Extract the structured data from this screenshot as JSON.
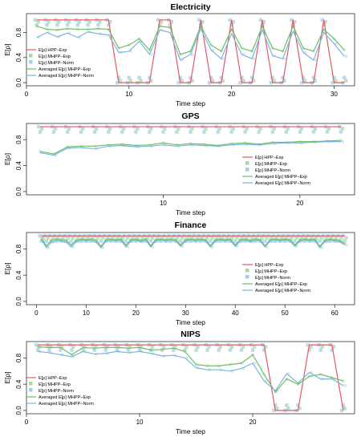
{
  "legend_labels": [
    "E[ρ] HPP−Exp",
    "E[ρ] MHPP−Exp",
    "E[ρ] MHPP−Norm",
    "Averaged E[ρ] MHPP−Exp",
    "Averaged E[ρ] MHPP−Norm"
  ],
  "colors": {
    "hpp_exp": "#e05a6a",
    "mhpp_exp_points": "#a9d8a0",
    "mhpp_norm_points": "#a6cde6",
    "avg_mhpp_exp": "#6fbe6a",
    "avg_mhpp_norm": "#7db4dc",
    "axis": "#333333"
  },
  "chart_data": [
    {
      "type": "line",
      "title": "Electricity",
      "xlabel": "Time step",
      "ylabel": "E[ρ]",
      "xlim": [
        0,
        32
      ],
      "ylim": [
        -0.05,
        1.1
      ],
      "xticks": [
        0,
        10,
        20,
        30
      ],
      "yticks": [
        0.0,
        0.4,
        0.8
      ],
      "legend_position": "left",
      "x": [
        1,
        2,
        3,
        4,
        5,
        6,
        7,
        8,
        9,
        10,
        11,
        12,
        13,
        14,
        15,
        16,
        17,
        18,
        19,
        20,
        21,
        22,
        23,
        24,
        25,
        26,
        27,
        28,
        29,
        30,
        31
      ],
      "series": [
        {
          "name": "E[ρ] HPP−Exp",
          "values": [
            1,
            1,
            1,
            1,
            1,
            1,
            1,
            1,
            0,
            0,
            0,
            0,
            1,
            1,
            0,
            0,
            1,
            0,
            0,
            1,
            0,
            0,
            1,
            0,
            0,
            1,
            0,
            0,
            1,
            0,
            0
          ]
        },
        {
          "name": "Averaged E[ρ] MHPP−Exp",
          "values": [
            0.9,
            0.85,
            0.84,
            0.86,
            0.85,
            0.85,
            0.86,
            0.85,
            0.55,
            0.6,
            0.7,
            0.52,
            0.9,
            0.88,
            0.45,
            0.5,
            0.9,
            0.6,
            0.5,
            0.85,
            0.55,
            0.5,
            0.9,
            0.55,
            0.5,
            0.9,
            0.55,
            0.5,
            0.85,
            0.7,
            0.52
          ]
        },
        {
          "name": "Averaged E[ρ] MHPP−Norm",
          "values": [
            0.72,
            0.8,
            0.73,
            0.79,
            0.72,
            0.81,
            0.78,
            0.76,
            0.48,
            0.5,
            0.66,
            0.45,
            0.84,
            0.8,
            0.36,
            0.45,
            0.86,
            0.52,
            0.38,
            0.78,
            0.45,
            0.38,
            0.84,
            0.43,
            0.38,
            0.82,
            0.48,
            0.36,
            0.8,
            0.62,
            0.42
          ]
        }
      ]
    },
    {
      "type": "line",
      "title": "GPS",
      "xlabel": "Time step",
      "ylabel": "E[ρ]",
      "xlim": [
        0,
        24
      ],
      "ylim": [
        -0.05,
        1.05
      ],
      "xticks": [
        10,
        20
      ],
      "yticks": [
        0.0,
        0.4,
        0.8
      ],
      "legend_position": "right",
      "x": [
        1,
        2,
        3,
        4,
        5,
        6,
        7,
        8,
        9,
        10,
        11,
        12,
        13,
        14,
        15,
        16,
        17,
        18,
        19,
        20,
        21,
        22,
        23
      ],
      "series": [
        {
          "name": "E[ρ] HPP−Exp",
          "values": [
            1,
            1,
            1,
            1,
            1,
            1,
            1,
            1,
            1,
            1,
            1,
            1,
            1,
            1,
            1,
            1,
            1,
            1,
            1,
            1,
            1,
            1,
            1
          ]
        },
        {
          "name": "Averaged E[ρ] MHPP−Exp",
          "values": [
            0.62,
            0.58,
            0.69,
            0.7,
            0.7,
            0.72,
            0.73,
            0.71,
            0.72,
            0.75,
            0.72,
            0.74,
            0.73,
            0.71,
            0.74,
            0.75,
            0.73,
            0.76,
            0.76,
            0.77,
            0.77,
            0.78,
            0.79
          ]
        },
        {
          "name": "Averaged E[ρ] MHPP−Norm",
          "values": [
            0.6,
            0.56,
            0.67,
            0.68,
            0.66,
            0.7,
            0.71,
            0.69,
            0.7,
            0.72,
            0.7,
            0.72,
            0.71,
            0.7,
            0.72,
            0.73,
            0.72,
            0.74,
            0.75,
            0.75,
            0.76,
            0.77,
            0.77
          ]
        }
      ]
    },
    {
      "type": "line",
      "title": "Finance",
      "xlabel": "Time step",
      "ylabel": "E[ρ]",
      "xlim": [
        -2,
        64
      ],
      "ylim": [
        -0.05,
        1.05
      ],
      "xticks": [
        0,
        10,
        20,
        30,
        40,
        50,
        60
      ],
      "yticks": [
        0.0,
        0.4,
        0.8
      ],
      "legend_position": "right",
      "x": [
        1,
        2,
        3,
        4,
        5,
        6,
        7,
        8,
        9,
        10,
        11,
        12,
        13,
        14,
        15,
        16,
        17,
        18,
        19,
        20,
        21,
        22,
        23,
        24,
        25,
        26,
        27,
        28,
        29,
        30,
        31,
        32,
        33,
        34,
        35,
        36,
        37,
        38,
        39,
        40,
        41,
        42,
        43,
        44,
        45,
        46,
        47,
        48,
        49,
        50,
        51,
        52,
        53,
        54,
        55,
        56,
        57,
        58,
        59,
        60,
        61,
        62
      ],
      "series": [
        {
          "name": "E[ρ] HPP−Exp",
          "values": [
            1,
            1,
            1,
            1,
            1,
            1,
            1,
            1,
            1,
            1,
            1,
            1,
            1,
            1,
            1,
            1,
            1,
            1,
            1,
            1,
            1,
            1,
            1,
            1,
            1,
            1,
            1,
            1,
            1,
            1,
            1,
            1,
            1,
            1,
            1,
            1,
            1,
            1,
            1,
            1,
            1,
            1,
            1,
            1,
            1,
            1,
            1,
            1,
            1,
            1,
            1,
            1,
            1,
            1,
            1,
            1,
            1,
            1,
            1,
            1,
            1,
            1
          ]
        },
        {
          "name": "Averaged E[ρ] MHPP−Exp",
          "values": [
            0.96,
            0.85,
            0.93,
            0.95,
            0.94,
            0.93,
            0.86,
            0.93,
            0.95,
            0.94,
            0.95,
            0.93,
            0.84,
            0.94,
            0.95,
            0.94,
            0.95,
            0.86,
            0.94,
            0.95,
            0.93,
            0.95,
            0.85,
            0.94,
            0.95,
            0.94,
            0.95,
            0.94,
            0.86,
            0.94,
            0.95,
            0.94,
            0.95,
            0.94,
            0.85,
            0.94,
            0.95,
            0.94,
            0.95,
            0.86,
            0.94,
            0.95,
            0.93,
            0.95,
            0.94,
            0.85,
            0.94,
            0.95,
            0.94,
            0.95,
            0.94,
            0.86,
            0.94,
            0.95,
            0.94,
            0.95,
            0.84,
            0.93,
            0.95,
            0.94,
            0.93,
            0.88
          ]
        },
        {
          "name": "Averaged E[ρ] MHPP−Norm",
          "values": [
            0.94,
            0.82,
            0.9,
            0.93,
            0.92,
            0.9,
            0.83,
            0.91,
            0.93,
            0.92,
            0.93,
            0.9,
            0.82,
            0.92,
            0.93,
            0.92,
            0.93,
            0.83,
            0.92,
            0.93,
            0.91,
            0.93,
            0.83,
            0.92,
            0.93,
            0.92,
            0.93,
            0.92,
            0.84,
            0.92,
            0.93,
            0.92,
            0.93,
            0.92,
            0.83,
            0.92,
            0.93,
            0.92,
            0.93,
            0.84,
            0.92,
            0.93,
            0.91,
            0.93,
            0.92,
            0.83,
            0.92,
            0.93,
            0.92,
            0.93,
            0.92,
            0.84,
            0.92,
            0.93,
            0.92,
            0.93,
            0.82,
            0.91,
            0.93,
            0.92,
            0.91,
            0.86
          ]
        }
      ]
    },
    {
      "type": "line",
      "title": "NIPS",
      "xlabel": "Time step",
      "ylabel": "E[ρ]",
      "xlim": [
        0,
        29
      ],
      "ylim": [
        -0.05,
        1.05
      ],
      "xticks": [
        0,
        10,
        20
      ],
      "yticks": [
        0.0,
        0.4,
        0.8
      ],
      "legend_position": "left",
      "x": [
        1,
        2,
        3,
        4,
        5,
        6,
        7,
        8,
        9,
        10,
        11,
        12,
        13,
        14,
        15,
        16,
        17,
        18,
        19,
        20,
        21,
        22,
        23,
        24,
        25,
        26,
        27,
        28
      ],
      "series": [
        {
          "name": "E[ρ] HPP−Exp",
          "values": [
            1,
            1,
            1,
            1,
            1,
            1,
            1,
            1,
            1,
            1,
            1,
            1,
            1,
            1,
            1,
            1,
            1,
            1,
            1,
            1,
            1,
            0,
            0,
            0,
            1,
            1,
            1,
            0
          ]
        },
        {
          "name": "Averaged E[ρ] MHPP−Exp",
          "values": [
            0.97,
            0.96,
            0.96,
            0.85,
            0.96,
            0.95,
            0.96,
            0.96,
            0.95,
            0.96,
            0.92,
            0.93,
            0.95,
            0.9,
            0.7,
            0.68,
            0.68,
            0.7,
            0.72,
            0.85,
            0.55,
            0.28,
            0.48,
            0.4,
            0.52,
            0.55,
            0.5,
            0.45
          ]
        },
        {
          "name": "Averaged E[ρ] MHPP−Norm",
          "values": [
            0.9,
            0.88,
            0.85,
            0.82,
            0.9,
            0.86,
            0.87,
            0.9,
            0.88,
            0.9,
            0.87,
            0.83,
            0.84,
            0.8,
            0.65,
            0.62,
            0.62,
            0.6,
            0.64,
            0.72,
            0.45,
            0.3,
            0.56,
            0.42,
            0.58,
            0.48,
            0.48,
            0.38
          ]
        }
      ]
    }
  ]
}
